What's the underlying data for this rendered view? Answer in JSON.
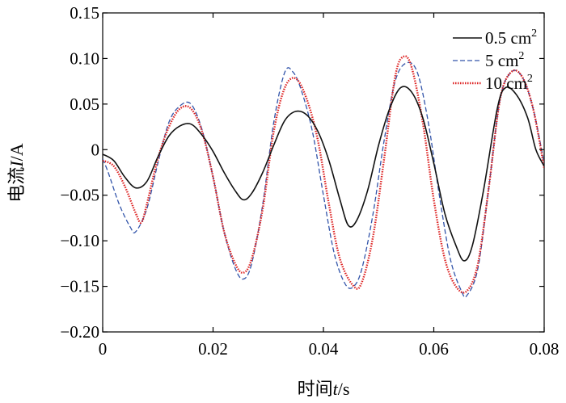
{
  "chart_data": {
    "type": "line",
    "xlabel": {
      "prefix": "时间",
      "var": "t",
      "unit": "/s"
    },
    "ylabel": {
      "prefix": "电流",
      "var": "I",
      "unit": "/A"
    },
    "xlim": [
      0,
      0.08
    ],
    "ylim": [
      -0.2,
      0.15
    ],
    "x_ticks": [
      {
        "value": 0,
        "label": "0"
      },
      {
        "value": 0.02,
        "label": "0.02"
      },
      {
        "value": 0.04,
        "label": "0.04"
      },
      {
        "value": 0.06,
        "label": "0.06"
      },
      {
        "value": 0.08,
        "label": "0.08"
      }
    ],
    "y_ticks": [
      {
        "value": 0.15,
        "label": "0.15"
      },
      {
        "value": 0.1,
        "label": "0.10"
      },
      {
        "value": 0.05,
        "label": "0.05"
      },
      {
        "value": 0,
        "label": "0"
      },
      {
        "value": -0.05,
        "label": "−0.05"
      },
      {
        "value": -0.1,
        "label": "−0.10"
      },
      {
        "value": -0.15,
        "label": "−0.15"
      },
      {
        "value": -0.2,
        "label": "−0.20"
      }
    ],
    "grid": false,
    "legend_position": "top-right",
    "series": [
      {
        "name": "0.5 cm",
        "name_sup": "2",
        "color": "#111111",
        "style": "solid",
        "x": [
          0,
          0.002,
          0.004,
          0.006,
          0.008,
          0.01,
          0.012,
          0.014,
          0.016,
          0.018,
          0.02,
          0.022,
          0.024,
          0.0255,
          0.027,
          0.029,
          0.031,
          0.033,
          0.035,
          0.037,
          0.039,
          0.041,
          0.043,
          0.0445,
          0.046,
          0.048,
          0.05,
          0.052,
          0.054,
          0.056,
          0.058,
          0.06,
          0.062,
          0.064,
          0.0655,
          0.067,
          0.069,
          0.0715,
          0.073,
          0.075,
          0.077,
          0.0785,
          0.08
        ],
        "y": [
          -0.005,
          -0.012,
          -0.03,
          -0.042,
          -0.035,
          -0.008,
          0.015,
          0.026,
          0.028,
          0.016,
          -0.002,
          -0.025,
          -0.045,
          -0.055,
          -0.048,
          -0.025,
          0.005,
          0.032,
          0.042,
          0.038,
          0.02,
          -0.012,
          -0.055,
          -0.083,
          -0.078,
          -0.045,
          0.005,
          0.045,
          0.068,
          0.063,
          0.035,
          -0.015,
          -0.07,
          -0.105,
          -0.122,
          -0.105,
          -0.045,
          0.045,
          0.068,
          0.06,
          0.035,
          0.0,
          -0.018
        ]
      },
      {
        "name": "5 cm",
        "name_sup": "2",
        "color": "#3355aa",
        "style": "dashed",
        "x": [
          0,
          0.001,
          0.003,
          0.005,
          0.006,
          0.008,
          0.01,
          0.012,
          0.014,
          0.016,
          0.018,
          0.02,
          0.022,
          0.024,
          0.0255,
          0.027,
          0.029,
          0.031,
          0.033,
          0.0345,
          0.036,
          0.038,
          0.04,
          0.042,
          0.044,
          0.0455,
          0.047,
          0.049,
          0.051,
          0.053,
          0.055,
          0.057,
          0.059,
          0.061,
          0.063,
          0.065,
          0.066,
          0.068,
          0.07,
          0.072,
          0.074,
          0.076,
          0.078,
          0.08
        ],
        "y": [
          -0.01,
          -0.025,
          -0.06,
          -0.085,
          -0.09,
          -0.065,
          -0.015,
          0.03,
          0.048,
          0.05,
          0.022,
          -0.03,
          -0.09,
          -0.13,
          -0.142,
          -0.125,
          -0.06,
          0.03,
          0.085,
          0.085,
          0.065,
          0.02,
          -0.05,
          -0.115,
          -0.148,
          -0.15,
          -0.13,
          -0.07,
          0.01,
          0.075,
          0.095,
          0.085,
          0.03,
          -0.05,
          -0.12,
          -0.155,
          -0.16,
          -0.13,
          -0.04,
          0.055,
          0.085,
          0.08,
          0.045,
          -0.015
        ]
      },
      {
        "name": "10 cm",
        "name_sup": "2",
        "color": "#dd2222",
        "style": "dotted",
        "x": [
          0,
          0.002,
          0.004,
          0.006,
          0.007,
          0.008,
          0.01,
          0.012,
          0.014,
          0.016,
          0.018,
          0.02,
          0.022,
          0.024,
          0.0255,
          0.027,
          0.029,
          0.031,
          0.033,
          0.035,
          0.037,
          0.039,
          0.041,
          0.043,
          0.0455,
          0.047,
          0.049,
          0.051,
          0.053,
          0.0545,
          0.056,
          0.058,
          0.06,
          0.062,
          0.064,
          0.066,
          0.068,
          0.07,
          0.072,
          0.074,
          0.076,
          0.078,
          0.08
        ],
        "y": [
          -0.012,
          -0.018,
          -0.04,
          -0.07,
          -0.08,
          -0.06,
          -0.01,
          0.025,
          0.045,
          0.045,
          0.02,
          -0.03,
          -0.09,
          -0.125,
          -0.135,
          -0.12,
          -0.065,
          0.02,
          0.068,
          0.078,
          0.055,
          0.01,
          -0.06,
          -0.12,
          -0.15,
          -0.145,
          -0.095,
          -0.01,
          0.08,
          0.102,
          0.09,
          0.03,
          -0.055,
          -0.12,
          -0.15,
          -0.155,
          -0.125,
          -0.04,
          0.055,
          0.085,
          0.08,
          0.045,
          -0.02
        ]
      }
    ]
  }
}
